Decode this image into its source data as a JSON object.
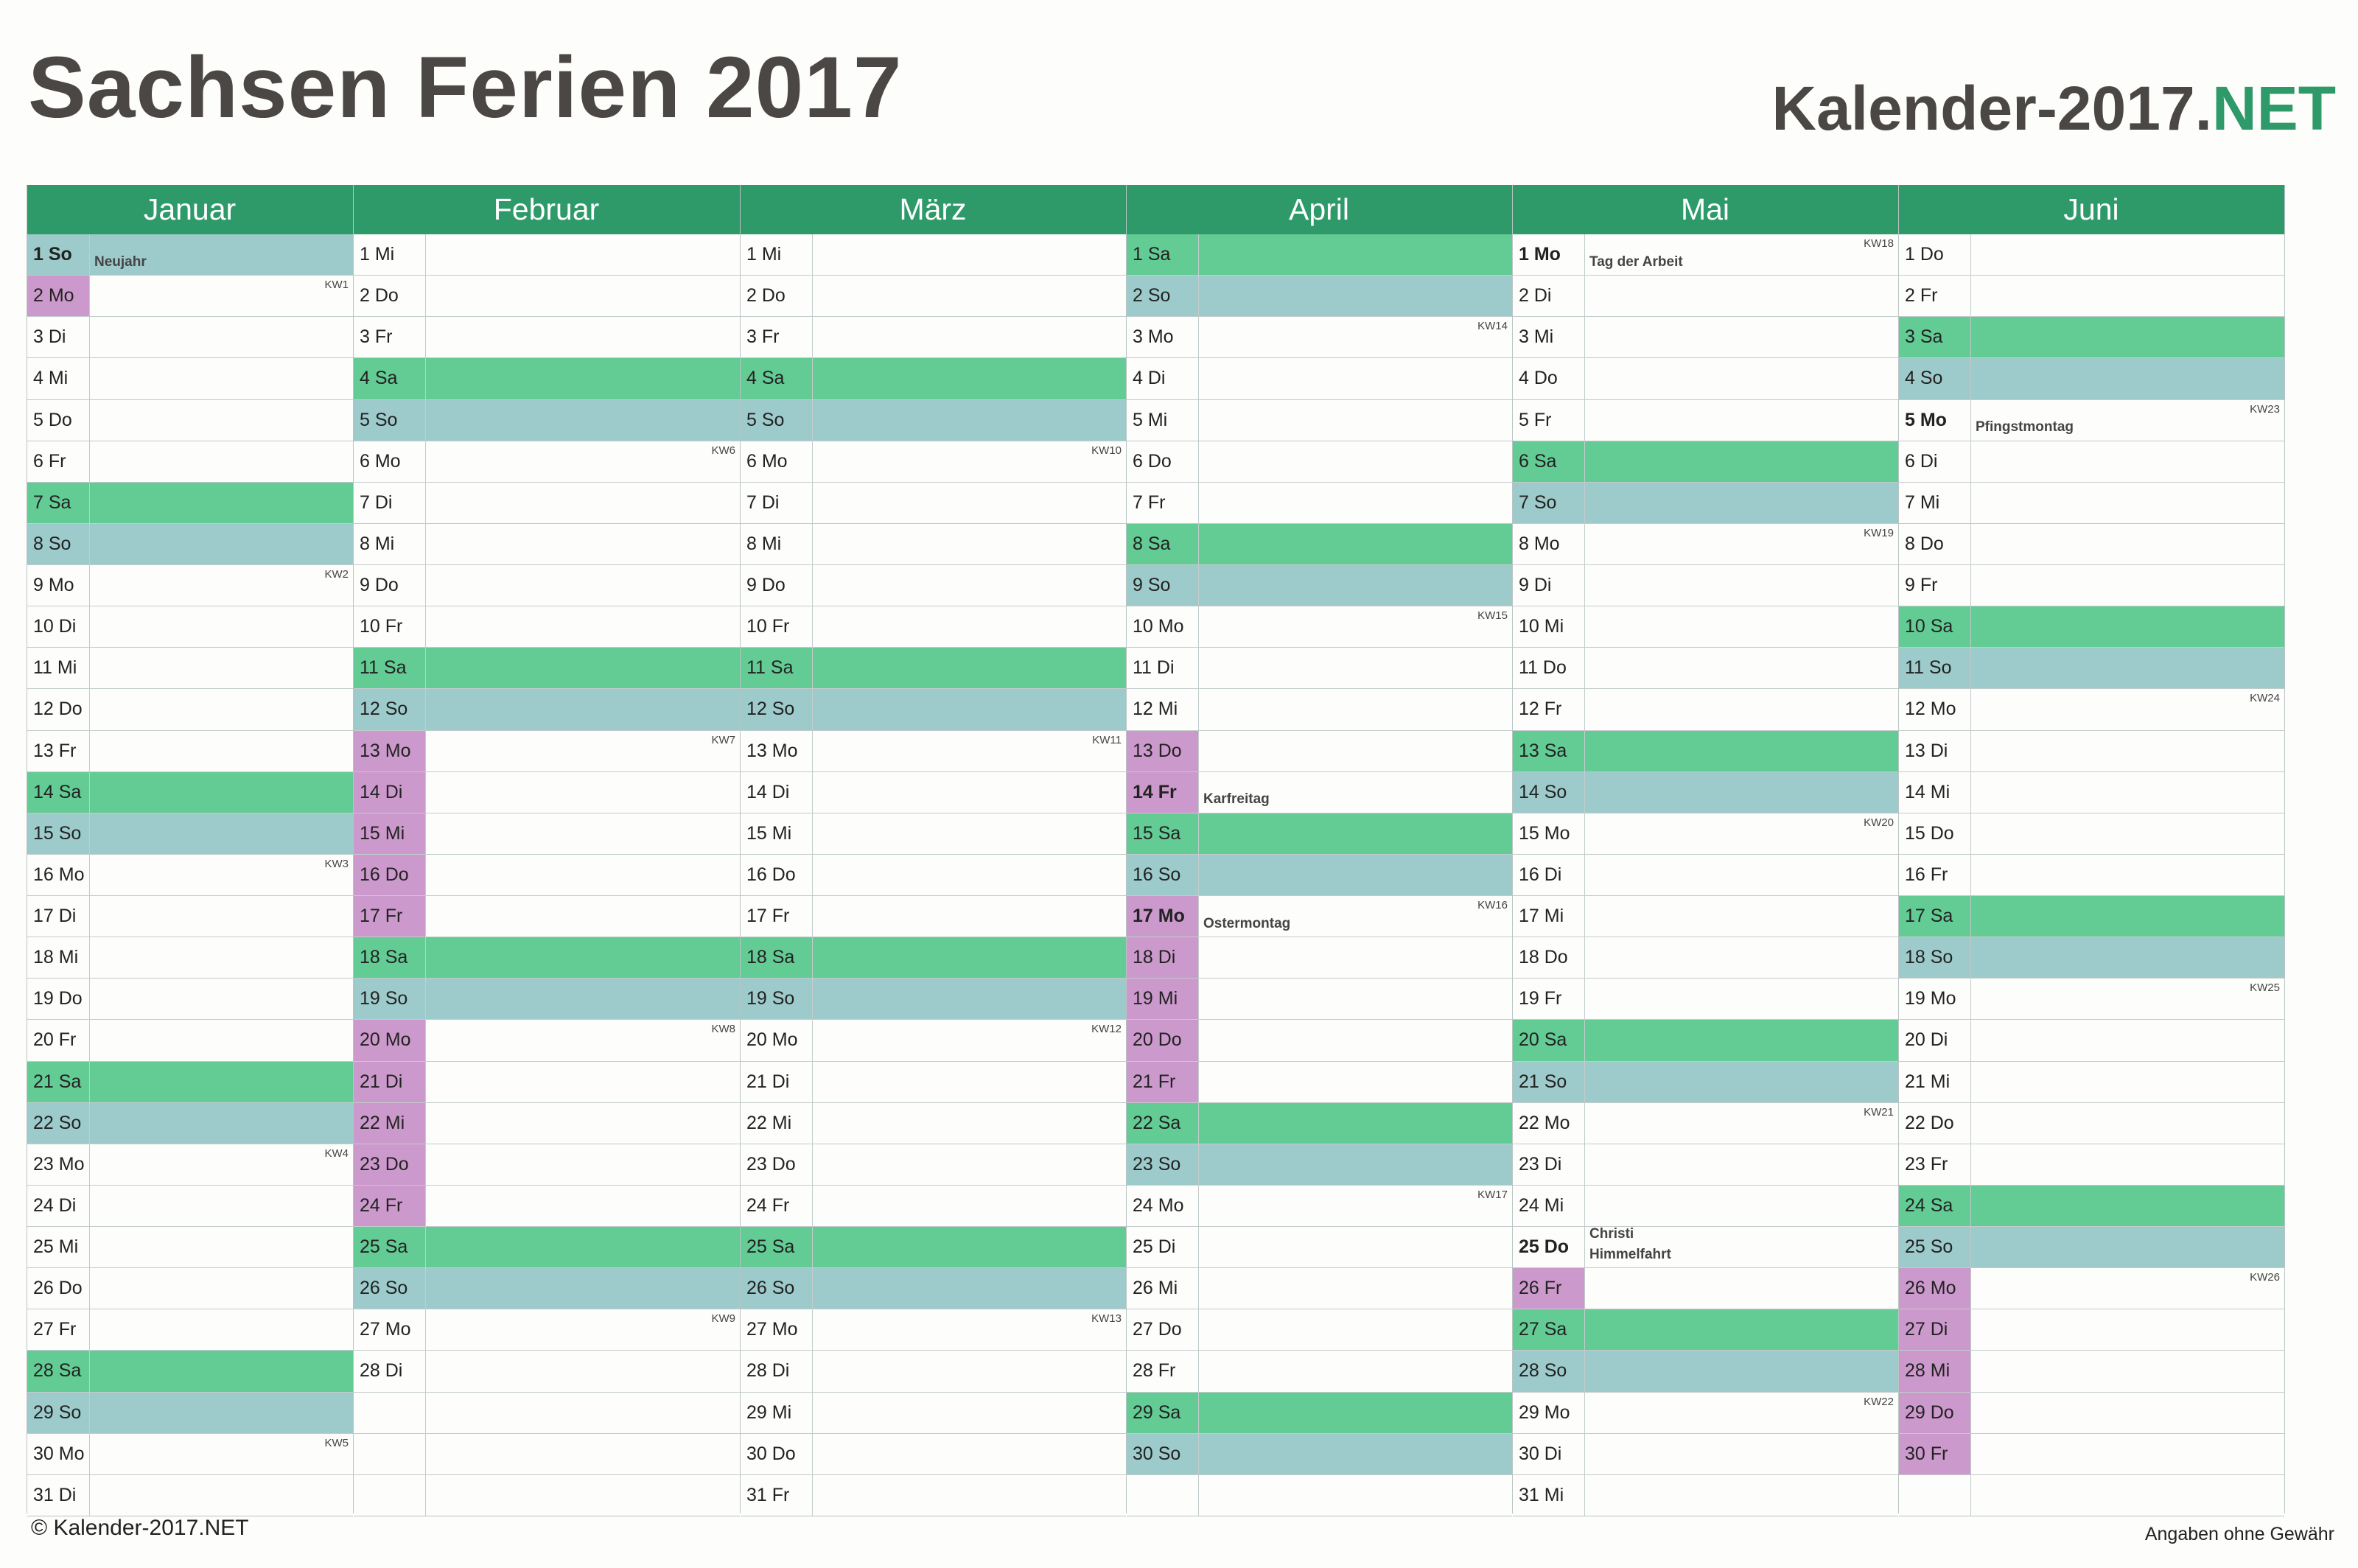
{
  "title": "Sachsen Ferien 2017",
  "brand": {
    "name": "Kalender-2017.",
    "tld": "NET"
  },
  "colors": {
    "header": "#2e9a6a",
    "saturday": "#63cb94",
    "sunday": "#9dcaca",
    "ferien": "#cc99cc"
  },
  "footer": {
    "copyright": "© Kalender-2017.NET",
    "disclaimer": "Angaben ohne Gewähr"
  },
  "months": [
    {
      "name": "Januar",
      "days": [
        {
          "label": "1 So",
          "type": "so",
          "note": "Neujahr",
          "holiday": true
        },
        {
          "label": "2 Mo",
          "type": "fe",
          "kw": "KW1"
        },
        {
          "label": "3 Di"
        },
        {
          "label": "4 Mi"
        },
        {
          "label": "5 Do"
        },
        {
          "label": "6 Fr"
        },
        {
          "label": "7 Sa",
          "type": "sa"
        },
        {
          "label": "8 So",
          "type": "so"
        },
        {
          "label": "9 Mo",
          "kw": "KW2"
        },
        {
          "label": "10 Di"
        },
        {
          "label": "11 Mi"
        },
        {
          "label": "12 Do"
        },
        {
          "label": "13 Fr"
        },
        {
          "label": "14 Sa",
          "type": "sa"
        },
        {
          "label": "15 So",
          "type": "so"
        },
        {
          "label": "16 Mo",
          "kw": "KW3"
        },
        {
          "label": "17 Di"
        },
        {
          "label": "18 Mi"
        },
        {
          "label": "19 Do"
        },
        {
          "label": "20 Fr"
        },
        {
          "label": "21 Sa",
          "type": "sa"
        },
        {
          "label": "22 So",
          "type": "so"
        },
        {
          "label": "23 Mo",
          "kw": "KW4"
        },
        {
          "label": "24 Di"
        },
        {
          "label": "25 Mi"
        },
        {
          "label": "26 Do"
        },
        {
          "label": "27 Fr"
        },
        {
          "label": "28 Sa",
          "type": "sa"
        },
        {
          "label": "29 So",
          "type": "so"
        },
        {
          "label": "30 Mo",
          "kw": "KW5"
        },
        {
          "label": "31 Di"
        }
      ]
    },
    {
      "name": "Februar",
      "days": [
        {
          "label": "1 Mi"
        },
        {
          "label": "2 Do"
        },
        {
          "label": "3 Fr"
        },
        {
          "label": "4 Sa",
          "type": "sa"
        },
        {
          "label": "5 So",
          "type": "so"
        },
        {
          "label": "6 Mo",
          "kw": "KW6"
        },
        {
          "label": "7 Di"
        },
        {
          "label": "8 Mi"
        },
        {
          "label": "9 Do"
        },
        {
          "label": "10 Fr"
        },
        {
          "label": "11 Sa",
          "type": "sa"
        },
        {
          "label": "12 So",
          "type": "so"
        },
        {
          "label": "13 Mo",
          "type": "fe",
          "kw": "KW7"
        },
        {
          "label": "14 Di",
          "type": "fe"
        },
        {
          "label": "15 Mi",
          "type": "fe"
        },
        {
          "label": "16 Do",
          "type": "fe"
        },
        {
          "label": "17 Fr",
          "type": "fe"
        },
        {
          "label": "18 Sa",
          "type": "sa"
        },
        {
          "label": "19 So",
          "type": "so"
        },
        {
          "label": "20 Mo",
          "type": "fe",
          "kw": "KW8"
        },
        {
          "label": "21 Di",
          "type": "fe"
        },
        {
          "label": "22 Mi",
          "type": "fe"
        },
        {
          "label": "23 Do",
          "type": "fe"
        },
        {
          "label": "24 Fr",
          "type": "fe"
        },
        {
          "label": "25 Sa",
          "type": "sa"
        },
        {
          "label": "26 So",
          "type": "so"
        },
        {
          "label": "27 Mo",
          "kw": "KW9"
        },
        {
          "label": "28 Di"
        },
        {
          "label": ""
        },
        {
          "label": ""
        },
        {
          "label": ""
        }
      ]
    },
    {
      "name": "März",
      "days": [
        {
          "label": "1 Mi"
        },
        {
          "label": "2 Do"
        },
        {
          "label": "3 Fr"
        },
        {
          "label": "4 Sa",
          "type": "sa"
        },
        {
          "label": "5 So",
          "type": "so"
        },
        {
          "label": "6 Mo",
          "kw": "KW10"
        },
        {
          "label": "7 Di"
        },
        {
          "label": "8 Mi"
        },
        {
          "label": "9 Do"
        },
        {
          "label": "10 Fr"
        },
        {
          "label": "11 Sa",
          "type": "sa"
        },
        {
          "label": "12 So",
          "type": "so"
        },
        {
          "label": "13 Mo",
          "kw": "KW11"
        },
        {
          "label": "14 Di"
        },
        {
          "label": "15 Mi"
        },
        {
          "label": "16 Do"
        },
        {
          "label": "17 Fr"
        },
        {
          "label": "18 Sa",
          "type": "sa"
        },
        {
          "label": "19 So",
          "type": "so"
        },
        {
          "label": "20 Mo",
          "kw": "KW12"
        },
        {
          "label": "21 Di"
        },
        {
          "label": "22 Mi"
        },
        {
          "label": "23 Do"
        },
        {
          "label": "24 Fr"
        },
        {
          "label": "25 Sa",
          "type": "sa"
        },
        {
          "label": "26 So",
          "type": "so"
        },
        {
          "label": "27 Mo",
          "kw": "KW13"
        },
        {
          "label": "28 Di"
        },
        {
          "label": "29 Mi"
        },
        {
          "label": "30 Do"
        },
        {
          "label": "31 Fr"
        }
      ]
    },
    {
      "name": "April",
      "days": [
        {
          "label": "1 Sa",
          "type": "sa"
        },
        {
          "label": "2 So",
          "type": "so"
        },
        {
          "label": "3 Mo",
          "kw": "KW14"
        },
        {
          "label": "4 Di"
        },
        {
          "label": "5 Mi"
        },
        {
          "label": "6 Do"
        },
        {
          "label": "7 Fr"
        },
        {
          "label": "8 Sa",
          "type": "sa"
        },
        {
          "label": "9 So",
          "type": "so"
        },
        {
          "label": "10 Mo",
          "kw": "KW15"
        },
        {
          "label": "11 Di"
        },
        {
          "label": "12 Mi"
        },
        {
          "label": "13 Do",
          "type": "fe"
        },
        {
          "label": "14 Fr",
          "type": "fe",
          "note": "Karfreitag",
          "holiday": true
        },
        {
          "label": "15 Sa",
          "type": "sa"
        },
        {
          "label": "16 So",
          "type": "so"
        },
        {
          "label": "17 Mo",
          "type": "fe",
          "kw": "KW16",
          "note": "Ostermontag",
          "holiday": true
        },
        {
          "label": "18 Di",
          "type": "fe"
        },
        {
          "label": "19 Mi",
          "type": "fe"
        },
        {
          "label": "20 Do",
          "type": "fe"
        },
        {
          "label": "21 Fr",
          "type": "fe"
        },
        {
          "label": "22 Sa",
          "type": "sa"
        },
        {
          "label": "23 So",
          "type": "so"
        },
        {
          "label": "24 Mo",
          "kw": "KW17"
        },
        {
          "label": "25 Di"
        },
        {
          "label": "26 Mi"
        },
        {
          "label": "27 Do"
        },
        {
          "label": "28 Fr"
        },
        {
          "label": "29 Sa",
          "type": "sa"
        },
        {
          "label": "30 So",
          "type": "so"
        },
        {
          "label": ""
        }
      ]
    },
    {
      "name": "Mai",
      "days": [
        {
          "label": "1 Mo",
          "kw": "KW18",
          "note": "Tag der Arbeit",
          "holiday": true
        },
        {
          "label": "2 Di"
        },
        {
          "label": "3 Mi"
        },
        {
          "label": "4 Do"
        },
        {
          "label": "5 Fr"
        },
        {
          "label": "6 Sa",
          "type": "sa"
        },
        {
          "label": "7 So",
          "type": "so"
        },
        {
          "label": "8 Mo",
          "kw": "KW19"
        },
        {
          "label": "9 Di"
        },
        {
          "label": "10 Mi"
        },
        {
          "label": "11 Do"
        },
        {
          "label": "12 Fr"
        },
        {
          "label": "13 Sa",
          "type": "sa"
        },
        {
          "label": "14 So",
          "type": "so"
        },
        {
          "label": "15 Mo",
          "kw": "KW20"
        },
        {
          "label": "16 Di"
        },
        {
          "label": "17 Mi"
        },
        {
          "label": "18 Do"
        },
        {
          "label": "19 Fr"
        },
        {
          "label": "20 Sa",
          "type": "sa"
        },
        {
          "label": "21 So",
          "type": "so"
        },
        {
          "label": "22 Mo",
          "kw": "KW21"
        },
        {
          "label": "23 Di"
        },
        {
          "label": "24 Mi"
        },
        {
          "label": "25 Do",
          "note": "Christi Himmelfahrt",
          "holiday": true
        },
        {
          "label": "26 Fr",
          "type": "fe"
        },
        {
          "label": "27 Sa",
          "type": "sa"
        },
        {
          "label": "28 So",
          "type": "so"
        },
        {
          "label": "29 Mo",
          "kw": "KW22"
        },
        {
          "label": "30 Di"
        },
        {
          "label": "31 Mi"
        }
      ]
    },
    {
      "name": "Juni",
      "days": [
        {
          "label": "1 Do"
        },
        {
          "label": "2 Fr"
        },
        {
          "label": "3 Sa",
          "type": "sa"
        },
        {
          "label": "4 So",
          "type": "so"
        },
        {
          "label": "5 Mo",
          "kw": "KW23",
          "note": "Pfingstmontag",
          "holiday": true
        },
        {
          "label": "6 Di"
        },
        {
          "label": "7 Mi"
        },
        {
          "label": "8 Do"
        },
        {
          "label": "9 Fr"
        },
        {
          "label": "10 Sa",
          "type": "sa"
        },
        {
          "label": "11 So",
          "type": "so"
        },
        {
          "label": "12 Mo",
          "kw": "KW24"
        },
        {
          "label": "13 Di"
        },
        {
          "label": "14 Mi"
        },
        {
          "label": "15 Do"
        },
        {
          "label": "16 Fr"
        },
        {
          "label": "17 Sa",
          "type": "sa"
        },
        {
          "label": "18 So",
          "type": "so"
        },
        {
          "label": "19 Mo",
          "kw": "KW25"
        },
        {
          "label": "20 Di"
        },
        {
          "label": "21 Mi"
        },
        {
          "label": "22 Do"
        },
        {
          "label": "23 Fr"
        },
        {
          "label": "24 Sa",
          "type": "sa"
        },
        {
          "label": "25 So",
          "type": "so"
        },
        {
          "label": "26 Mo",
          "type": "fe",
          "kw": "KW26"
        },
        {
          "label": "27 Di",
          "type": "fe"
        },
        {
          "label": "28 Mi",
          "type": "fe"
        },
        {
          "label": "29 Do",
          "type": "fe"
        },
        {
          "label": "30 Fr",
          "type": "fe"
        },
        {
          "label": ""
        }
      ]
    }
  ]
}
